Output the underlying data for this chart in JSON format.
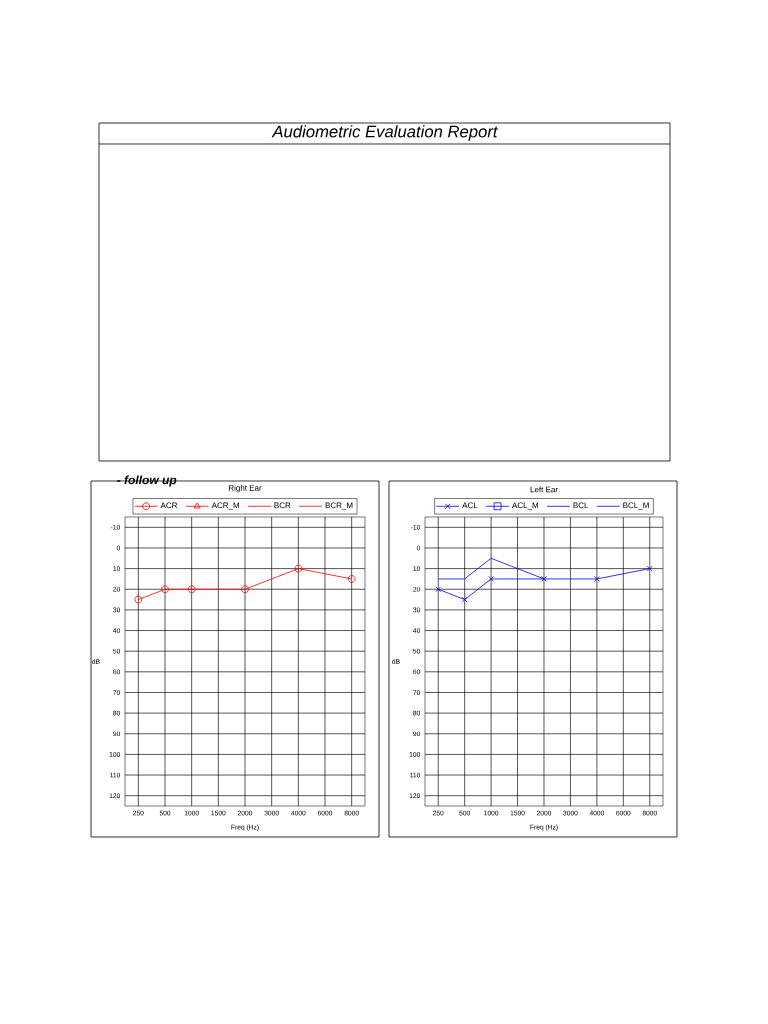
{
  "chart_data": [
    {
      "type": "line",
      "title": "Right Ear",
      "xlabel": "Freq (Hz)",
      "ylabel": "dB",
      "annotations": [
        "Audiometric Evaluation Report",
        "- follow up"
      ],
      "categories": [
        "250",
        "500",
        "1000",
        "1500",
        "2000",
        "3000",
        "4000",
        "6000",
        "8000"
      ],
      "ylim": [
        125,
        -15
      ],
      "yticks": [
        -10,
        0,
        10,
        20,
        30,
        40,
        50,
        60,
        70,
        80,
        90,
        100,
        110,
        120
      ],
      "grid": true,
      "legend": "top",
      "series": [
        {
          "name": "ACR",
          "color": "#ff0000",
          "marker": "circle",
          "values": [
            25,
            20,
            20,
            null,
            20,
            null,
            10,
            null,
            15
          ]
        },
        {
          "name": "ACR_M",
          "color": "#ff0000",
          "marker": "triangle",
          "values": [
            null,
            null,
            null,
            null,
            null,
            null,
            null,
            null,
            null
          ]
        },
        {
          "name": "BCR",
          "color": "#ff0000",
          "values": [
            null,
            null,
            null,
            null,
            null,
            null,
            null,
            null,
            null
          ]
        },
        {
          "name": "BCR_M",
          "color": "#ff0000",
          "values": [
            null,
            null,
            null,
            null,
            null,
            null,
            null,
            null,
            null
          ]
        }
      ]
    },
    {
      "type": "line",
      "title": "Left Ear",
      "xlabel": "Freq (Hz)",
      "ylabel": "dB",
      "categories": [
        "250",
        "500",
        "1000",
        "1500",
        "2000",
        "3000",
        "4000",
        "6000",
        "8000"
      ],
      "ylim": [
        125,
        -15
      ],
      "yticks": [
        -10,
        0,
        10,
        20,
        30,
        40,
        50,
        60,
        70,
        80,
        90,
        100,
        110,
        120
      ],
      "grid": true,
      "legend": "top",
      "series": [
        {
          "name": "ACL",
          "color": "#0000ff",
          "marker": "cross",
          "values": [
            20,
            25,
            15,
            null,
            15,
            null,
            15,
            null,
            10
          ]
        },
        {
          "name": "ACL_M",
          "color": "#0000ff",
          "marker": "square",
          "values": [
            null,
            null,
            null,
            null,
            null,
            null,
            null,
            null,
            null
          ]
        },
        {
          "name": "BCL",
          "color": "#0000ff",
          "values": [
            15,
            15,
            5,
            null,
            15,
            null,
            null,
            null,
            null
          ]
        },
        {
          "name": "BCL_M",
          "color": "#0000ff",
          "values": [
            null,
            null,
            null,
            null,
            null,
            null,
            null,
            null,
            null
          ]
        }
      ]
    }
  ]
}
